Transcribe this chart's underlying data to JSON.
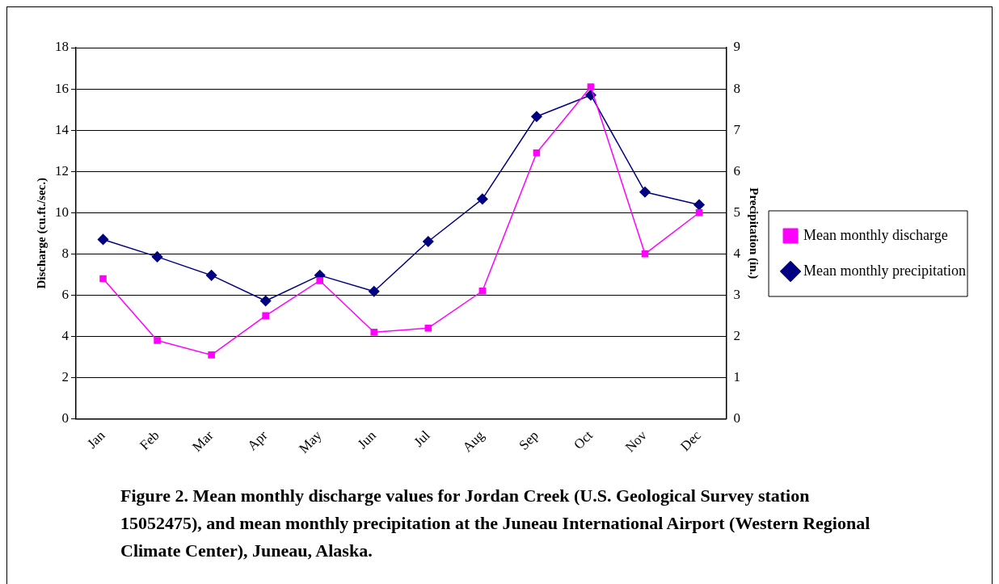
{
  "chart_data": {
    "type": "line",
    "ylabel": "Discharge (cu.ft./sec.)",
    "y2label": "Precipitation (in.)",
    "categories": [
      "Jan",
      "Feb",
      "Mar",
      "Apr",
      "May",
      "Jun",
      "Jul",
      "Aug",
      "Sep",
      "Oct",
      "Nov",
      "Dec"
    ],
    "series": [
      {
        "name": "Mean monthly discharge",
        "color": "#ff00ff",
        "marker": "square",
        "values": [
          6.8,
          3.8,
          3.1,
          5.0,
          6.7,
          4.2,
          4.4,
          6.2,
          12.9,
          16.1,
          8.0,
          10.0
        ]
      },
      {
        "name": "Mean monthly precipitation",
        "color": "#000080",
        "marker": "diamond",
        "axis": "y2",
        "values": [
          4.35,
          3.93,
          3.48,
          2.86,
          3.48,
          3.09,
          4.3,
          5.33,
          7.33,
          7.85,
          5.5,
          5.19
        ]
      }
    ],
    "ylim": [
      0,
      18
    ],
    "yticks": [
      0,
      2,
      4,
      6,
      8,
      10,
      12,
      14,
      16,
      18
    ],
    "y2lim": [
      0,
      9
    ],
    "y2ticks": [
      0,
      1,
      2,
      3,
      4,
      5,
      6,
      7,
      8,
      9
    ],
    "grid": "y",
    "legend": "right",
    "line_style": "solid",
    "annotations": [
      "Figure 2.  Mean monthly discharge values for Jordan Creek (U.S. Geological Survey station 15052475), and mean monthly precipitation at the Juneau International Airport (Western Regional Climate Center), Juneau, Alaska."
    ]
  }
}
